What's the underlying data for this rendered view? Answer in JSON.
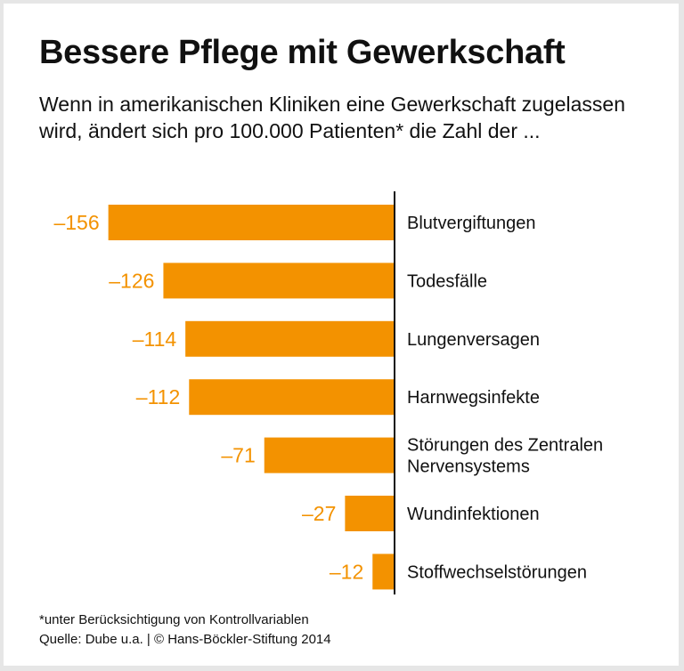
{
  "chart_data": {
    "type": "bar",
    "orientation": "horizontal",
    "title": "Bessere Pflege mit Gewerkschaft",
    "subtitle": "Wenn in amerikanischen Kliniken eine Gewerkschaft zugelassen wird, ändert sich pro 100.000 Patienten* die Zahl der ...",
    "categories": [
      [
        "Blutvergiftungen"
      ],
      [
        "Todesfälle"
      ],
      [
        "Lungenversagen"
      ],
      [
        "Harnwegsinfekte"
      ],
      [
        "Störungen des Zentralen",
        "Nervensystems"
      ],
      [
        "Wundinfektionen"
      ],
      [
        "Stoffwechselstörungen"
      ]
    ],
    "values": [
      -156,
      -126,
      -114,
      -112,
      -71,
      -27,
      -12
    ],
    "value_labels": [
      "–156",
      "–126",
      "–114",
      "–112",
      "–71",
      "–27",
      "–12"
    ],
    "bar_color": "#f39200",
    "grid": false
  },
  "footer": {
    "note": "*unter Berücksichtigung von Kontrollvariablen",
    "source": "Quelle: Dube u.a. | © Hans-Böckler-Stiftung 2014"
  }
}
